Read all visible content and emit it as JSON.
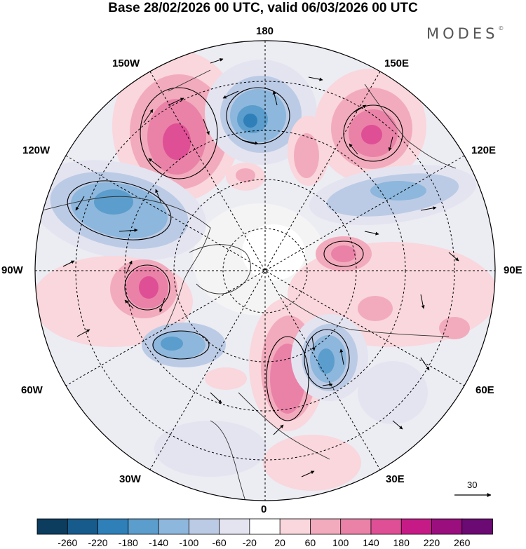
{
  "title": "Base 28/02/2026 00 UTC, valid 06/03/2026 00 UTC",
  "brand": "MODES",
  "brand_mark": "©",
  "longitude_labels": {
    "n180": "180",
    "w150": "150W",
    "e150": "150E",
    "w120": "120W",
    "e120": "120E",
    "w90": "90W",
    "e90": "90E",
    "w60": "60W",
    "e60": "60E",
    "w30": "30W",
    "e30": "30E",
    "s0": "0"
  },
  "vector_reference": {
    "value": "30"
  },
  "colorbar": {
    "ticks": [
      "-260",
      "-220",
      "-180",
      "-140",
      "-100",
      "-60",
      "-20",
      "20",
      "60",
      "100",
      "140",
      "180",
      "220",
      "260"
    ],
    "colors": [
      "#0c3c5e",
      "#165b8b",
      "#2f7fb8",
      "#5b9dcc",
      "#8db7dc",
      "#bccbe5",
      "#e4e4f1",
      "#ffffff",
      "#f9d7dc",
      "#f2abbd",
      "#ea82a8",
      "#df4f95",
      "#c61b86",
      "#9a0e7e",
      "#6a0a72"
    ]
  },
  "anomaly_colors": {
    "pos1": "#f9d7dc",
    "pos2": "#f2abbd",
    "pos3": "#ea82a8",
    "pos4": "#df4f95",
    "neg1": "#e4e4f1",
    "neg2": "#bccbe5",
    "neg3": "#8db7dc",
    "neg4": "#5b9dcc",
    "neg5": "#2f7fb8"
  }
}
